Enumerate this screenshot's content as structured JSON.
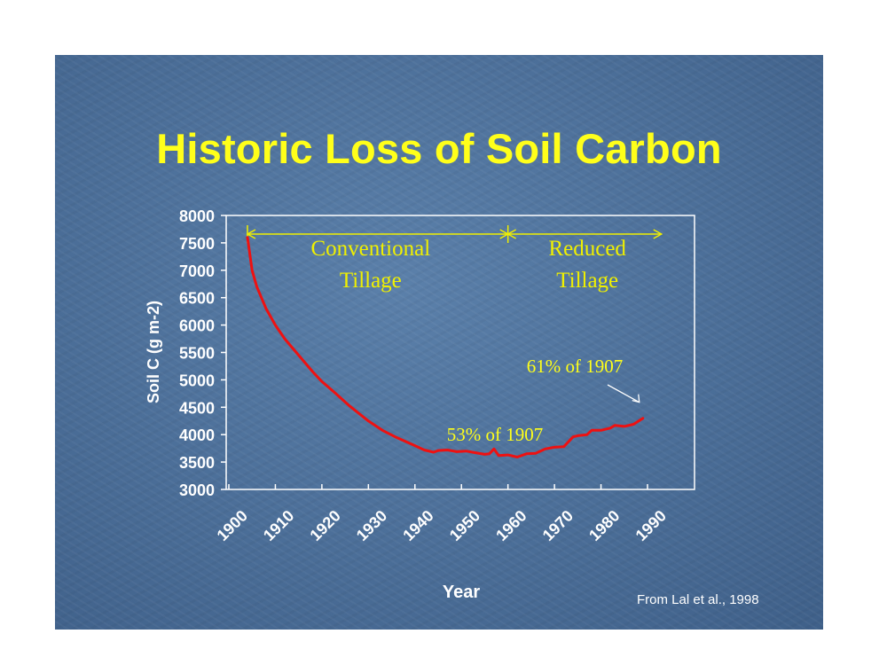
{
  "slide": {
    "title": "Historic Loss of Soil Carbon",
    "source": "From Lal et al., 1998",
    "background_color": "#4b6e98",
    "title_color": "#ffff1a"
  },
  "chart_data": {
    "type": "line",
    "title": "",
    "xlabel": "Year",
    "ylabel": "Soil C (g m-2)",
    "xlim": [
      1900,
      1990
    ],
    "ylim": [
      3000,
      8000
    ],
    "xticks": [
      "1900",
      "1910",
      "1920",
      "1930",
      "1940",
      "1950",
      "1960",
      "1970",
      "1980",
      "1990"
    ],
    "yticks": [
      "8000",
      "7500",
      "7000",
      "6500",
      "6000",
      "5500",
      "5000",
      "4500",
      "4000",
      "3500",
      "3000"
    ],
    "grid": false,
    "series": [
      {
        "color": "#ee1111",
        "x": [
          1904,
          1905,
          1906,
          1907,
          1908,
          1910,
          1912,
          1915,
          1918,
          1920,
          1923,
          1926,
          1930,
          1933,
          1936,
          1940,
          1942,
          1944,
          1945,
          1947,
          1949,
          1951,
          1953,
          1955,
          1956,
          1957,
          1958,
          1960,
          1962,
          1964,
          1966,
          1968,
          1970,
          1972,
          1974,
          1975,
          1977,
          1978,
          1980,
          1982,
          1983,
          1985,
          1987,
          1989
        ],
        "y": [
          7600,
          7000,
          6700,
          6500,
          6300,
          6000,
          5750,
          5450,
          5150,
          4970,
          4750,
          4520,
          4250,
          4080,
          3950,
          3800,
          3720,
          3680,
          3710,
          3720,
          3690,
          3700,
          3670,
          3640,
          3650,
          3740,
          3620,
          3630,
          3590,
          3650,
          3660,
          3740,
          3770,
          3780,
          3960,
          3980,
          4000,
          4080,
          4080,
          4120,
          4170,
          4150,
          4190,
          4300
        ]
      }
    ],
    "period_labels": [
      {
        "text": "Conventional Tillage",
        "line1": "Conventional",
        "line2": "Tillage",
        "from": 1904,
        "to": 1960
      },
      {
        "text": "Reduced Tillage",
        "line1": "Reduced",
        "line2": "Tillage",
        "from": 1960,
        "to": 1993
      }
    ],
    "annotations": [
      {
        "text": "53% of 1907",
        "x": 1955,
        "y": 3640
      },
      {
        "text": "61% of 1907",
        "x": 1989,
        "y": 4300
      }
    ],
    "annotation_color": "#ffff1a",
    "period_color": "#f0f000"
  }
}
